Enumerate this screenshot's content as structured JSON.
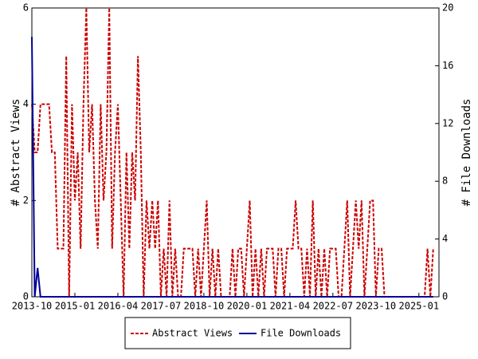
{
  "chart_data": {
    "type": "line",
    "x": [
      "2013-10",
      "2013-11",
      "2013-12",
      "2014-01",
      "2014-02",
      "2014-03",
      "2014-04",
      "2014-05",
      "2014-06",
      "2014-07",
      "2014-08",
      "2014-09",
      "2014-10",
      "2014-11",
      "2014-12",
      "2015-01",
      "2015-02",
      "2015-03",
      "2015-04",
      "2015-05",
      "2015-06",
      "2015-07",
      "2015-08",
      "2015-09",
      "2015-10",
      "2015-11",
      "2015-12",
      "2016-01",
      "2016-02",
      "2016-03",
      "2016-04",
      "2016-05",
      "2016-06",
      "2016-07",
      "2016-08",
      "2016-09",
      "2016-10",
      "2016-11",
      "2016-12",
      "2017-01",
      "2017-02",
      "2017-03",
      "2017-04",
      "2017-05",
      "2017-06",
      "2017-07",
      "2017-08",
      "2017-09",
      "2017-10",
      "2017-11",
      "2017-12",
      "2018-01",
      "2018-02",
      "2018-03",
      "2018-04",
      "2018-05",
      "2018-06",
      "2018-07",
      "2018-08",
      "2018-09",
      "2018-10",
      "2018-11",
      "2018-12",
      "2019-01",
      "2019-02",
      "2019-03",
      "2019-04",
      "2019-05",
      "2019-06",
      "2019-07",
      "2019-08",
      "2019-09",
      "2019-10",
      "2019-11",
      "2019-12",
      "2020-01",
      "2020-02",
      "2020-03",
      "2020-04",
      "2020-05",
      "2020-06",
      "2020-07",
      "2020-08",
      "2020-09",
      "2020-10",
      "2020-11",
      "2020-12",
      "2021-01",
      "2021-02",
      "2021-03",
      "2021-04",
      "2021-05",
      "2021-06",
      "2021-07",
      "2021-08",
      "2021-09",
      "2021-10",
      "2021-11",
      "2021-12",
      "2022-01",
      "2022-02",
      "2022-03",
      "2022-04",
      "2022-05",
      "2022-06",
      "2022-07",
      "2022-08",
      "2022-09",
      "2022-10",
      "2022-11",
      "2022-12",
      "2023-01",
      "2023-02",
      "2023-03",
      "2023-04",
      "2023-05",
      "2023-06",
      "2023-07",
      "2023-08",
      "2023-09",
      "2023-10",
      "2023-11",
      "2023-12",
      "2024-01",
      "2024-02",
      "2024-03",
      "2024-04",
      "2024-05",
      "2024-06",
      "2024-07",
      "2024-08",
      "2024-09",
      "2024-10",
      "2024-11",
      "2024-12",
      "2025-01",
      "2025-02",
      "2025-03",
      "2025-04",
      "2025-05",
      "2025-06"
    ],
    "xlim": [
      "2013-10",
      "2025-08"
    ],
    "xticks": [
      "2013-10",
      "2015-01",
      "2016-04",
      "2017-07",
      "2018-10",
      "2020-01",
      "2021-04",
      "2022-07",
      "2023-10",
      "2025-01"
    ],
    "ylabel": "# Abstract Views",
    "y2label": "# File Downloads",
    "ylim": [
      0,
      6
    ],
    "yticks": [
      0,
      2,
      4,
      6
    ],
    "y2lim": [
      0,
      20
    ],
    "y2ticks": [
      0,
      4,
      8,
      12,
      16,
      20
    ],
    "legend": "bottom",
    "series": [
      {
        "name": "Abstract Views",
        "color": "#cc0000",
        "dash": true,
        "values": [
          4,
          3,
          3,
          4,
          4,
          4,
          4,
          3,
          3,
          1,
          1,
          1,
          5,
          0,
          4,
          2,
          3,
          1,
          4,
          6,
          3,
          4,
          2,
          1,
          4,
          2,
          3,
          6,
          1,
          3,
          4,
          2,
          0,
          3,
          1,
          3,
          2,
          5,
          3,
          0,
          2,
          1,
          2,
          1,
          2,
          0,
          1,
          0,
          2,
          0,
          1,
          0,
          0,
          1,
          1,
          1,
          1,
          0,
          1,
          0,
          1,
          2,
          0,
          1,
          0,
          1,
          0,
          0,
          0,
          0,
          1,
          0,
          1,
          1,
          0,
          1,
          2,
          0,
          1,
          0,
          1,
          0,
          1,
          1,
          1,
          0,
          1,
          1,
          0,
          1,
          1,
          1,
          2,
          1,
          1,
          0,
          1,
          0,
          2,
          0,
          1,
          0,
          1,
          0,
          1,
          1,
          1,
          0,
          0,
          1,
          2,
          0,
          1,
          2,
          1,
          2,
          0,
          1,
          2,
          2,
          0,
          1,
          1,
          0,
          0,
          0,
          0,
          0,
          0,
          0,
          0,
          0,
          0,
          0,
          0,
          0,
          0,
          0,
          1,
          0,
          1
        ]
      },
      {
        "name": "File Downloads",
        "color": "#000099",
        "axis": "y2",
        "dash": false,
        "values": [
          18,
          0,
          2,
          0,
          0,
          0,
          0,
          0,
          0,
          0,
          0,
          0,
          0,
          0,
          0,
          0,
          0,
          0,
          0,
          0,
          0,
          0,
          0,
          0,
          0,
          0,
          0,
          0,
          0,
          0,
          0,
          0,
          0,
          0,
          0,
          0,
          0,
          0,
          0,
          0,
          0,
          0,
          0,
          0,
          0,
          0,
          0,
          0,
          0,
          0,
          0,
          0,
          0,
          0,
          0,
          0,
          0,
          0,
          0,
          0,
          0,
          0,
          0,
          0,
          0,
          0,
          0,
          0,
          0,
          0,
          0,
          0,
          0,
          0,
          0,
          0,
          0,
          0,
          0,
          0,
          0,
          0,
          0,
          0,
          0,
          0,
          0,
          0,
          0,
          0,
          0,
          0,
          0,
          0,
          0,
          0,
          0,
          0,
          0,
          0,
          0,
          0,
          0,
          0,
          0,
          0,
          0,
          0,
          0,
          0,
          0,
          0,
          0,
          0,
          0,
          0,
          0,
          0,
          0,
          0,
          0,
          0,
          0,
          0,
          0,
          0,
          0,
          0,
          0,
          0,
          0,
          0,
          0,
          0,
          0,
          0,
          0,
          0,
          0,
          0,
          0
        ]
      }
    ]
  }
}
